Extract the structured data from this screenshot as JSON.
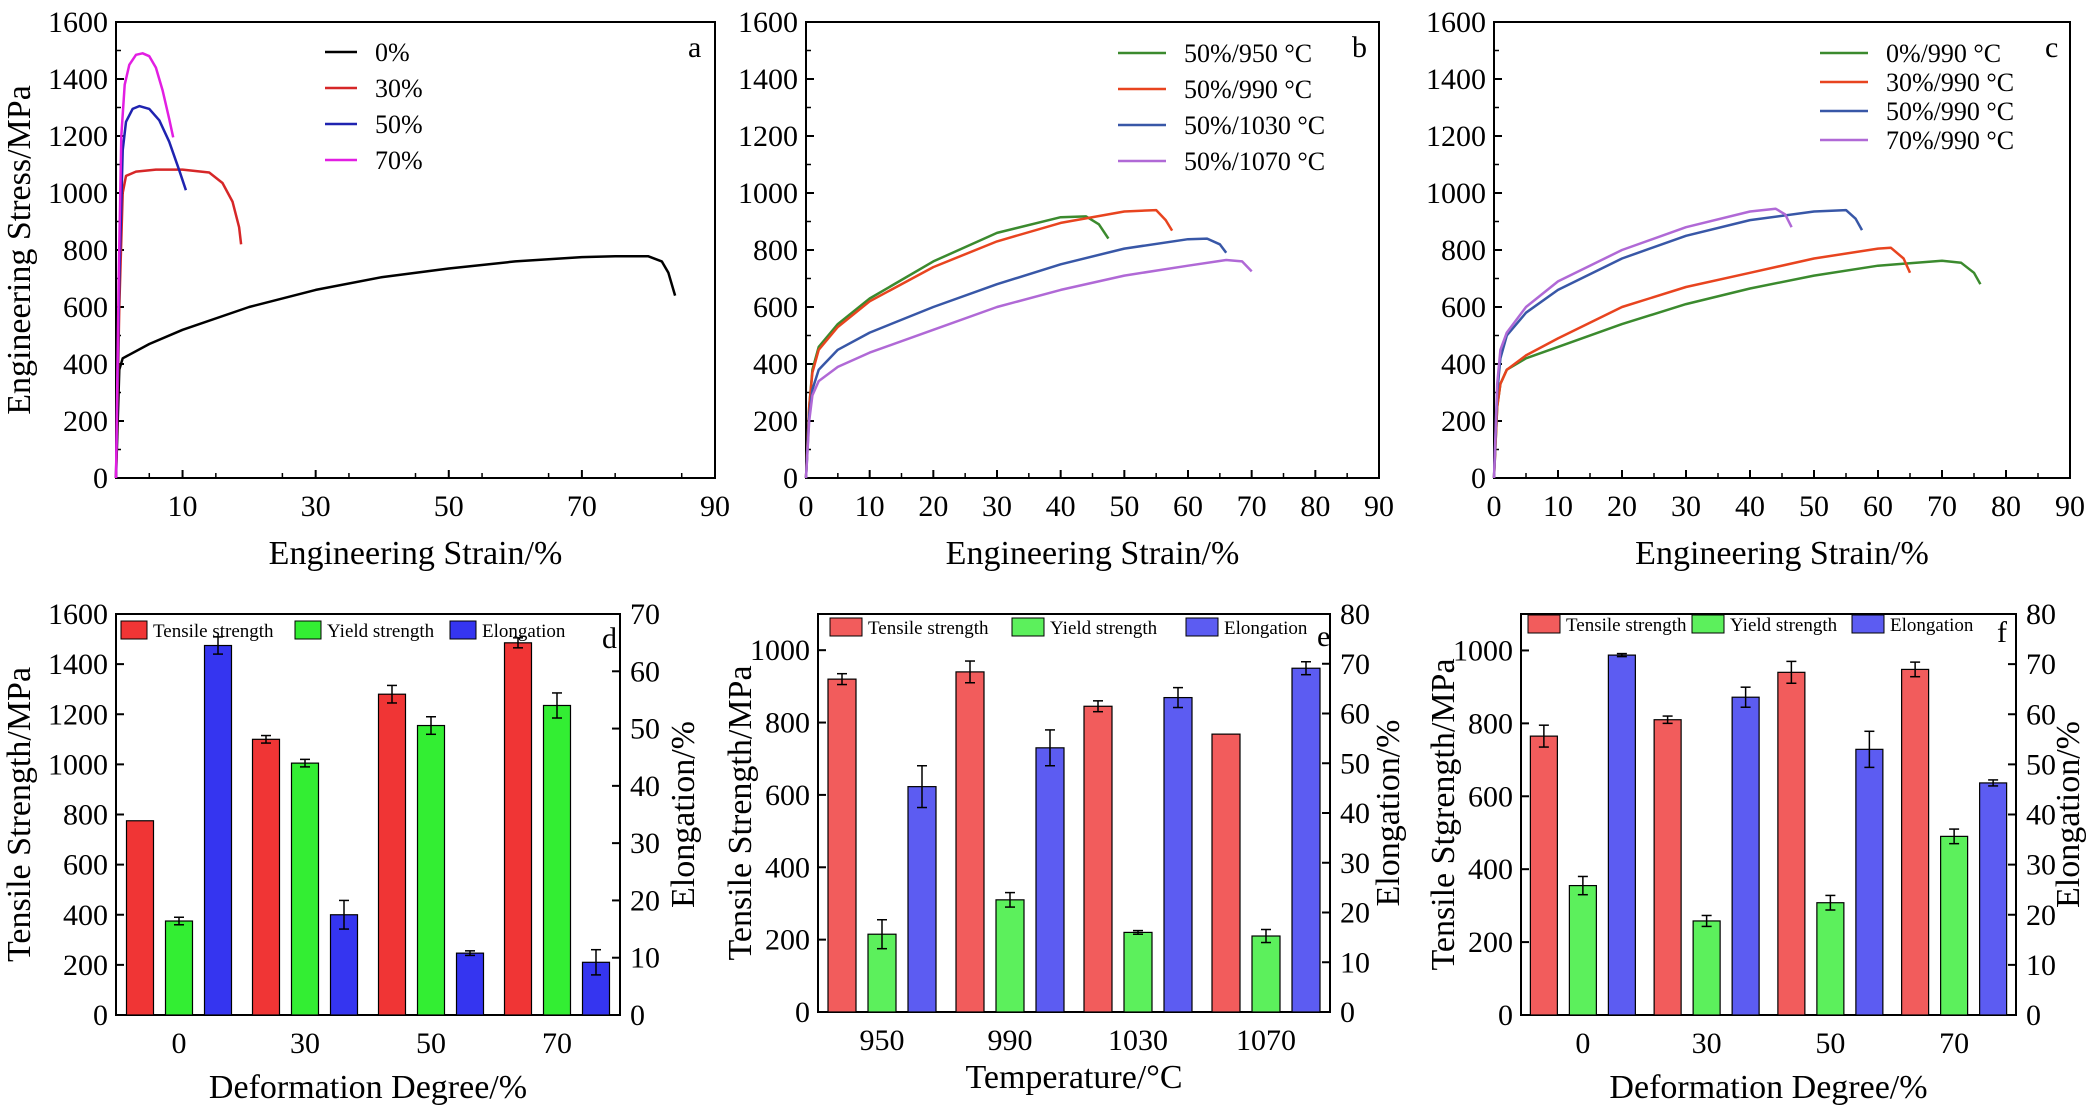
{
  "colors": {
    "black": "#000000",
    "red": "#d62728",
    "blue": "#1f23b0",
    "magenta": "#e21ee2",
    "green": "#3b8a2e",
    "orange": "#e8441f",
    "steel": "#3857a7",
    "purple": "#b069d6",
    "bar_red": "#f03535",
    "bar_green": "#33ee33",
    "bar_blue": "#3535f0",
    "bar_red_soft": "#f25c5c",
    "bar_green_soft": "#5cf05c",
    "bar_blue_soft": "#5c5cf2"
  },
  "chart_data": [
    {
      "panel": "a",
      "type": "line",
      "xlabel": "Engineering Strain/%",
      "ylabel": "Engineering Stress/MPa",
      "xlim": [
        0,
        90
      ],
      "ylim": [
        0,
        1600
      ],
      "xticks": [
        "10",
        "30",
        "50",
        "70",
        "90"
      ],
      "yticks": [
        "0",
        "200",
        "400",
        "600",
        "800",
        "1000",
        "1200",
        "1400",
        "1600"
      ],
      "legend_position": "top-center",
      "series": [
        {
          "name": "0%",
          "color": "#000000",
          "x": [
            0,
            0.5,
            1,
            5,
            10,
            20,
            30,
            40,
            50,
            60,
            70,
            75,
            80,
            82,
            83,
            84
          ],
          "y": [
            0,
            380,
            420,
            470,
            520,
            600,
            660,
            705,
            735,
            760,
            775,
            778,
            778,
            760,
            720,
            640
          ]
        },
        {
          "name": "30%",
          "color": "#d62728",
          "x": [
            0,
            0.5,
            1,
            1.5,
            3,
            6,
            10,
            14,
            16,
            17.5,
            18.5,
            18.8
          ],
          "y": [
            0,
            600,
            1000,
            1060,
            1075,
            1082,
            1082,
            1072,
            1035,
            970,
            880,
            820
          ]
        },
        {
          "name": "50%",
          "color": "#1f23b0",
          "x": [
            0,
            0.5,
            1,
            1.5,
            2.5,
            3.5,
            5,
            6.5,
            8,
            9.5,
            10.5
          ],
          "y": [
            0,
            700,
            1150,
            1250,
            1295,
            1305,
            1295,
            1255,
            1180,
            1080,
            1010
          ]
        },
        {
          "name": "70%",
          "color": "#e21ee2",
          "x": [
            0,
            0.4,
            0.8,
            1.3,
            2,
            3,
            4,
            5,
            6,
            7,
            8,
            8.6
          ],
          "y": [
            0,
            700,
            1200,
            1380,
            1450,
            1485,
            1490,
            1480,
            1440,
            1360,
            1260,
            1195
          ]
        }
      ]
    },
    {
      "panel": "b",
      "type": "line",
      "xlabel": "Engineering Strain/%",
      "ylabel": "",
      "xlim": [
        0,
        90
      ],
      "ylim": [
        0,
        1600
      ],
      "xticks": [
        "0",
        "10",
        "20",
        "30",
        "40",
        "50",
        "60",
        "70",
        "80",
        "90"
      ],
      "yticks": [
        "0",
        "200",
        "400",
        "600",
        "800",
        "1000",
        "1200",
        "1400",
        "1600"
      ],
      "legend_position": "top-right",
      "series": [
        {
          "name": "50%/950 °C",
          "color": "#3b8a2e",
          "x": [
            0,
            0.5,
            1,
            2,
            5,
            10,
            20,
            30,
            40,
            44,
            46,
            47.5
          ],
          "y": [
            0,
            250,
            380,
            460,
            540,
            630,
            760,
            860,
            915,
            918,
            890,
            840
          ]
        },
        {
          "name": "50%/990 °C",
          "color": "#e8441f",
          "x": [
            0,
            0.5,
            1,
            2,
            5,
            10,
            20,
            30,
            40,
            50,
            55,
            56.5,
            57.5
          ],
          "y": [
            0,
            250,
            370,
            450,
            530,
            620,
            740,
            830,
            895,
            935,
            940,
            905,
            868
          ]
        },
        {
          "name": "50%/1030 °C",
          "color": "#3857a7",
          "x": [
            0,
            0.5,
            1,
            2,
            5,
            10,
            20,
            30,
            40,
            50,
            60,
            63,
            65,
            66
          ],
          "y": [
            0,
            220,
            310,
            380,
            450,
            510,
            600,
            680,
            750,
            805,
            838,
            840,
            820,
            790
          ]
        },
        {
          "name": "50%/1070 °C",
          "color": "#b069d6",
          "x": [
            0,
            0.5,
            1,
            2,
            5,
            10,
            20,
            30,
            40,
            50,
            60,
            66,
            68.5,
            70
          ],
          "y": [
            0,
            200,
            290,
            340,
            390,
            440,
            520,
            600,
            660,
            710,
            745,
            765,
            760,
            725
          ]
        }
      ]
    },
    {
      "panel": "c",
      "type": "line",
      "xlabel": "Engineering Strain/%",
      "ylabel": "",
      "xlim": [
        0,
        90
      ],
      "ylim": [
        0,
        1600
      ],
      "xticks": [
        "0",
        "10",
        "20",
        "30",
        "40",
        "50",
        "60",
        "70",
        "80",
        "90"
      ],
      "yticks": [
        "0",
        "200",
        "400",
        "600",
        "800",
        "1000",
        "1200",
        "1400",
        "1600"
      ],
      "legend_position": "top-right",
      "series": [
        {
          "name": "0%/990 °C",
          "color": "#3b8a2e",
          "x": [
            0,
            0.5,
            1,
            2,
            5,
            10,
            20,
            30,
            40,
            50,
            60,
            70,
            73,
            75,
            76
          ],
          "y": [
            0,
            250,
            330,
            380,
            420,
            460,
            540,
            610,
            665,
            710,
            745,
            762,
            755,
            720,
            680
          ]
        },
        {
          "name": "30%/990 °C",
          "color": "#e8441f",
          "x": [
            0,
            0.5,
            1,
            2,
            5,
            10,
            20,
            30,
            40,
            50,
            60,
            62,
            64,
            65
          ],
          "y": [
            0,
            250,
            330,
            380,
            430,
            490,
            600,
            670,
            720,
            770,
            805,
            808,
            770,
            720
          ]
        },
        {
          "name": "50%/990 °C",
          "color": "#3857a7",
          "x": [
            0,
            0.5,
            1,
            2,
            5,
            10,
            20,
            30,
            40,
            50,
            55,
            56.5,
            57.5
          ],
          "y": [
            0,
            300,
            420,
            500,
            580,
            660,
            770,
            850,
            905,
            935,
            940,
            910,
            870
          ]
        },
        {
          "name": "70%/990 °C",
          "color": "#b069d6",
          "x": [
            0,
            0.5,
            1,
            2,
            5,
            10,
            20,
            30,
            40,
            44,
            45.5,
            46.5
          ],
          "y": [
            0,
            330,
            450,
            510,
            600,
            690,
            800,
            880,
            935,
            945,
            925,
            880
          ]
        }
      ]
    },
    {
      "panel": "d",
      "type": "bar",
      "xlabel": "Deformation Degree/%",
      "ylabel": "Tensile Strength/MPa",
      "y2label": "Elongation/%",
      "categories": [
        "0",
        "30",
        "50",
        "70"
      ],
      "ylim": [
        0,
        1600
      ],
      "y2lim": [
        0,
        70
      ],
      "yticks": [
        "0",
        "200",
        "400",
        "600",
        "800",
        "1000",
        "1200",
        "1400",
        "1600"
      ],
      "y2ticks": [
        "0",
        "10",
        "20",
        "30",
        "40",
        "50",
        "60",
        "70"
      ],
      "legend_position": "top",
      "series": [
        {
          "name": "Tensile strength",
          "axis": "left",
          "color": "#f03535",
          "values": [
            775,
            1100,
            1280,
            1485
          ],
          "errors": [
            0,
            15,
            35,
            20
          ]
        },
        {
          "name": "Yield strength",
          "axis": "left",
          "color": "#33ee33",
          "values": [
            375,
            1005,
            1155,
            1235
          ],
          "errors": [
            15,
            15,
            35,
            50
          ]
        },
        {
          "name": "Elongation",
          "axis": "right",
          "color": "#3535f0",
          "values": [
            64.5,
            17.5,
            10.8,
            9.2
          ],
          "errors": [
            1.5,
            2.5,
            0.4,
            2.2
          ]
        }
      ]
    },
    {
      "panel": "e",
      "type": "bar",
      "xlabel": "Temperature/°C",
      "ylabel": "Tensile Strength/MPa",
      "y2label": "Elongation/%",
      "categories": [
        "950",
        "990",
        "1030",
        "1070"
      ],
      "ylim": [
        0,
        1100
      ],
      "y2lim": [
        0,
        80
      ],
      "yticks": [
        "0",
        "200",
        "400",
        "600",
        "800",
        "1000"
      ],
      "y2ticks": [
        "0",
        "10",
        "20",
        "30",
        "40",
        "50",
        "60",
        "70",
        "80"
      ],
      "legend_position": "top",
      "series": [
        {
          "name": "Tensile strength",
          "axis": "left",
          "color": "#f25c5c",
          "values": [
            920,
            940,
            845,
            768
          ],
          "errors": [
            15,
            30,
            15,
            0
          ]
        },
        {
          "name": "Yield strength",
          "axis": "left",
          "color": "#5cf05c",
          "values": [
            215,
            310,
            220,
            210
          ],
          "errors": [
            40,
            20,
            5,
            18
          ]
        },
        {
          "name": "Elongation",
          "axis": "right",
          "color": "#5c5cf2",
          "values": [
            45.3,
            53.1,
            63.2,
            69.1
          ],
          "errors": [
            4.2,
            3.6,
            2.0,
            1.3
          ]
        }
      ]
    },
    {
      "panel": "f",
      "type": "bar",
      "xlabel": "Deformation Degree/%",
      "ylabel": "Tensile Stgrength/MPa",
      "y2label": "Elongation/%",
      "categories": [
        "0",
        "30",
        "50",
        "70"
      ],
      "ylim": [
        0,
        1100
      ],
      "y2lim": [
        0,
        80
      ],
      "yticks": [
        "0",
        "200",
        "400",
        "600",
        "800",
        "1000"
      ],
      "y2ticks": [
        "0",
        "10",
        "20",
        "30",
        "40",
        "50",
        "60",
        "70",
        "80"
      ],
      "legend_position": "top",
      "series": [
        {
          "name": "Tensile strength",
          "axis": "left",
          "color": "#f25c5c",
          "values": [
            765,
            810,
            940,
            948
          ],
          "errors": [
            30,
            10,
            30,
            20
          ]
        },
        {
          "name": "Yield strength",
          "axis": "left",
          "color": "#5cf05c",
          "values": [
            355,
            258,
            308,
            490
          ],
          "errors": [
            25,
            15,
            20,
            20
          ]
        },
        {
          "name": "Elongation",
          "axis": "right",
          "color": "#5c5cf2",
          "values": [
            71.8,
            63.4,
            53.0,
            46.3
          ],
          "errors": [
            0.3,
            2.0,
            3.6,
            0.6
          ]
        }
      ]
    }
  ]
}
